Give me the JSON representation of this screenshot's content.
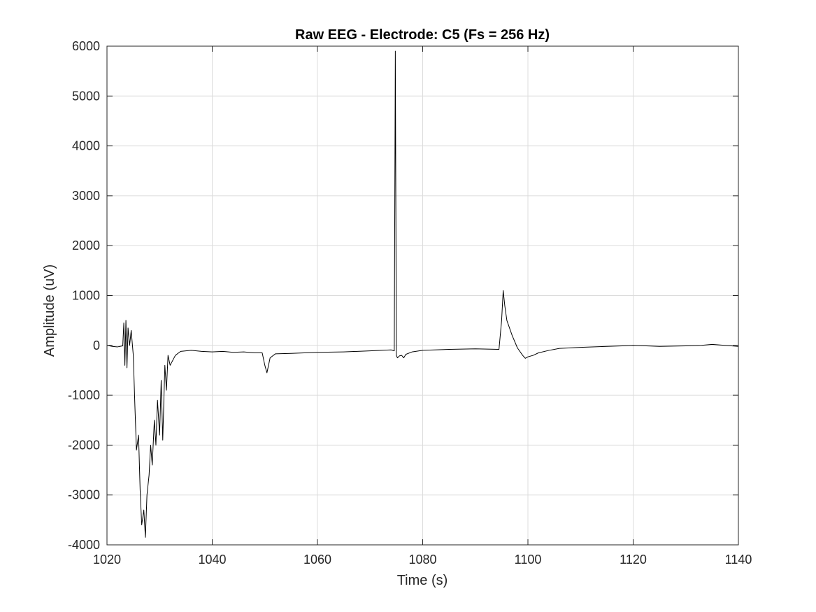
{
  "chart_data": {
    "type": "line",
    "title": "Raw EEG - Electrode: C5 (Fs = 256 Hz)",
    "xlabel": "Time (s)",
    "ylabel": "Amplitude (uV)",
    "xlim": [
      1020,
      1140
    ],
    "ylim": [
      -4000,
      6000
    ],
    "xticks": [
      1020,
      1040,
      1060,
      1080,
      1100,
      1120,
      1140
    ],
    "yticks": [
      -4000,
      -3000,
      -2000,
      -1000,
      0,
      1000,
      2000,
      3000,
      4000,
      5000,
      6000
    ],
    "grid": true,
    "line_color": "#000000",
    "series": [
      {
        "x": [
          1020,
          1021,
          1022,
          1023,
          1023.2,
          1023.4,
          1023.6,
          1023.8,
          1024,
          1024.3,
          1024.6,
          1025,
          1025.3,
          1025.6,
          1026,
          1026.3,
          1026.6,
          1027,
          1027.3,
          1027.6,
          1028,
          1028.3,
          1028.6,
          1029,
          1029.3,
          1029.6,
          1030,
          1030.3,
          1030.6,
          1031,
          1031.3,
          1031.6,
          1032,
          1033,
          1034,
          1036,
          1038,
          1040,
          1042,
          1044,
          1046,
          1048,
          1049.5,
          1050,
          1050.4,
          1051,
          1052,
          1055,
          1060,
          1065,
          1070,
          1074,
          1074.6,
          1074.8,
          1074.9,
          1075,
          1075.2,
          1075.6,
          1076,
          1076.4,
          1076.8,
          1078,
          1080,
          1085,
          1090,
          1094.5,
          1095,
          1095.3,
          1095.6,
          1096,
          1097,
          1098,
          1099,
          1099.5,
          1100,
          1101,
          1102,
          1104,
          1106,
          1110,
          1115,
          1118,
          1120,
          1125,
          1130,
          1133,
          1135,
          1140
        ],
        "y": [
          0,
          -20,
          -30,
          -10,
          450,
          -400,
          500,
          -450,
          350,
          0,
          300,
          -200,
          -1200,
          -2100,
          -1800,
          -2900,
          -3600,
          -3300,
          -3850,
          -3000,
          -2600,
          -2000,
          -2400,
          -1500,
          -2000,
          -1100,
          -1800,
          -700,
          -1900,
          -400,
          -900,
          -200,
          -400,
          -200,
          -120,
          -100,
          -120,
          -130,
          -120,
          -140,
          -130,
          -150,
          -150,
          -400,
          -550,
          -250,
          -170,
          -160,
          -140,
          -130,
          -110,
          -90,
          -110,
          5900,
          2800,
          -200,
          -250,
          -210,
          -200,
          -250,
          -180,
          -130,
          -100,
          -80,
          -70,
          -80,
          500,
          1100,
          800,
          500,
          200,
          -50,
          -200,
          -260,
          -230,
          -200,
          -150,
          -100,
          -60,
          -40,
          -20,
          -10,
          0,
          -20,
          -10,
          0,
          20,
          -20
        ]
      }
    ]
  }
}
